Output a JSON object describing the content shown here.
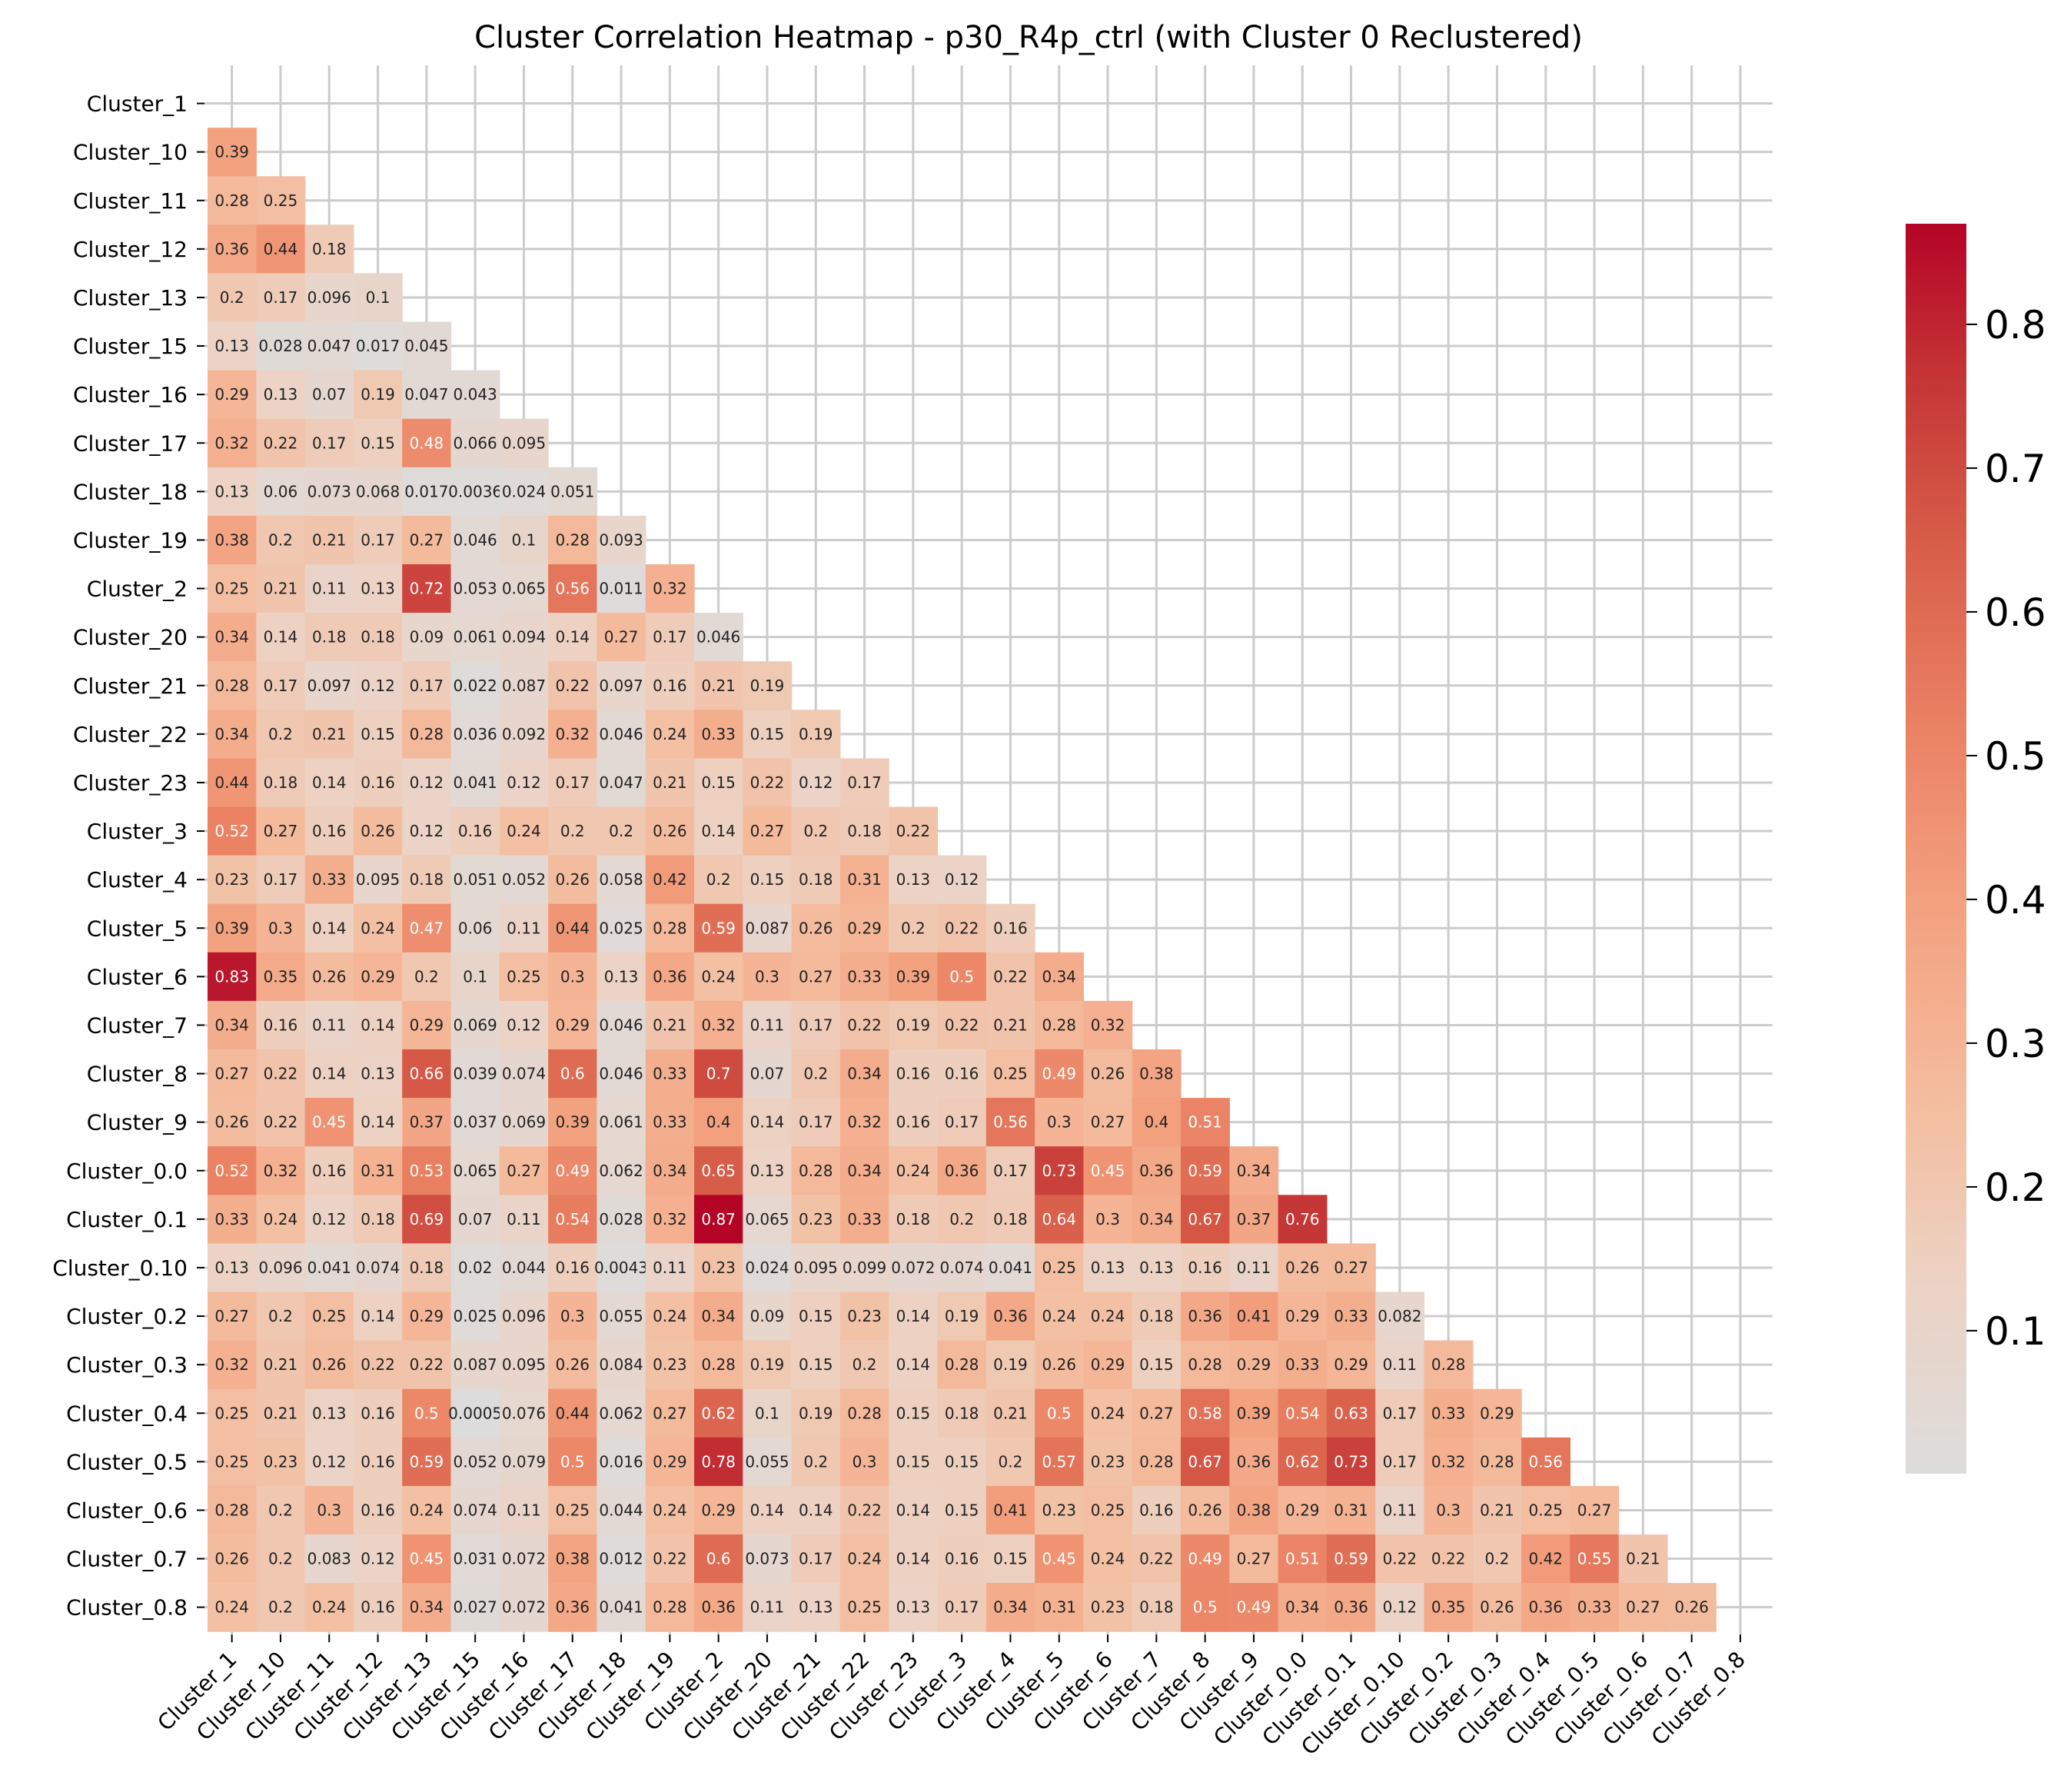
{
  "chart_data": {
    "type": "heatmap",
    "title": "Cluster Correlation Heatmap - p30_R4p_ctrl (with Cluster 0 Reclustered)",
    "xlabel": "",
    "ylabel": "",
    "mask": "upper-triangle",
    "grid": true,
    "colormap": "coolwarm (centered, light gray at minimum)",
    "color_low": "#dcdcdc",
    "color_high": "#b40426",
    "vmin": 0.0005,
    "vmax": 0.87,
    "labels": [
      "Cluster_1",
      "Cluster_10",
      "Cluster_11",
      "Cluster_12",
      "Cluster_13",
      "Cluster_15",
      "Cluster_16",
      "Cluster_17",
      "Cluster_18",
      "Cluster_19",
      "Cluster_2",
      "Cluster_20",
      "Cluster_21",
      "Cluster_22",
      "Cluster_23",
      "Cluster_3",
      "Cluster_4",
      "Cluster_5",
      "Cluster_6",
      "Cluster_7",
      "Cluster_8",
      "Cluster_9",
      "Cluster_0.0",
      "Cluster_0.1",
      "Cluster_0.10",
      "Cluster_0.2",
      "Cluster_0.3",
      "Cluster_0.4",
      "Cluster_0.5",
      "Cluster_0.6",
      "Cluster_0.7",
      "Cluster_0.8"
    ],
    "rows": [
      [],
      [
        "0.39"
      ],
      [
        "0.28",
        "0.25"
      ],
      [
        "0.36",
        "0.44",
        "0.18"
      ],
      [
        "0.2",
        "0.17",
        "0.096",
        "0.1"
      ],
      [
        "0.13",
        "0.028",
        "0.047",
        "0.017",
        "0.045"
      ],
      [
        "0.29",
        "0.13",
        "0.07",
        "0.19",
        "0.047",
        "0.043"
      ],
      [
        "0.32",
        "0.22",
        "0.17",
        "0.15",
        "0.48",
        "0.066",
        "0.095"
      ],
      [
        "0.13",
        "0.06",
        "0.073",
        "0.068",
        "0.017",
        "0.0036",
        "0.024",
        "0.051"
      ],
      [
        "0.38",
        "0.2",
        "0.21",
        "0.17",
        "0.27",
        "0.046",
        "0.1",
        "0.28",
        "0.093"
      ],
      [
        "0.25",
        "0.21",
        "0.11",
        "0.13",
        "0.72",
        "0.053",
        "0.065",
        "0.56",
        "0.011",
        "0.32"
      ],
      [
        "0.34",
        "0.14",
        "0.18",
        "0.18",
        "0.09",
        "0.061",
        "0.094",
        "0.14",
        "0.27",
        "0.17",
        "0.046"
      ],
      [
        "0.28",
        "0.17",
        "0.097",
        "0.12",
        "0.17",
        "0.022",
        "0.087",
        "0.22",
        "0.097",
        "0.16",
        "0.21",
        "0.19"
      ],
      [
        "0.34",
        "0.2",
        "0.21",
        "0.15",
        "0.28",
        "0.036",
        "0.092",
        "0.32",
        "0.046",
        "0.24",
        "0.33",
        "0.15",
        "0.19"
      ],
      [
        "0.44",
        "0.18",
        "0.14",
        "0.16",
        "0.12",
        "0.041",
        "0.12",
        "0.17",
        "0.047",
        "0.21",
        "0.15",
        "0.22",
        "0.12",
        "0.17"
      ],
      [
        "0.52",
        "0.27",
        "0.16",
        "0.26",
        "0.12",
        "0.16",
        "0.24",
        "0.2",
        "0.2",
        "0.26",
        "0.14",
        "0.27",
        "0.2",
        "0.18",
        "0.22"
      ],
      [
        "0.23",
        "0.17",
        "0.33",
        "0.095",
        "0.18",
        "0.051",
        "0.052",
        "0.26",
        "0.058",
        "0.42",
        "0.2",
        "0.15",
        "0.18",
        "0.31",
        "0.13",
        "0.12"
      ],
      [
        "0.39",
        "0.3",
        "0.14",
        "0.24",
        "0.47",
        "0.06",
        "0.11",
        "0.44",
        "0.025",
        "0.28",
        "0.59",
        "0.087",
        "0.26",
        "0.29",
        "0.2",
        "0.22",
        "0.16"
      ],
      [
        "0.83",
        "0.35",
        "0.26",
        "0.29",
        "0.2",
        "0.1",
        "0.25",
        "0.3",
        "0.13",
        "0.36",
        "0.24",
        "0.3",
        "0.27",
        "0.33",
        "0.39",
        "0.5",
        "0.22",
        "0.34"
      ],
      [
        "0.34",
        "0.16",
        "0.11",
        "0.14",
        "0.29",
        "0.069",
        "0.12",
        "0.29",
        "0.046",
        "0.21",
        "0.32",
        "0.11",
        "0.17",
        "0.22",
        "0.19",
        "0.22",
        "0.21",
        "0.28",
        "0.32"
      ],
      [
        "0.27",
        "0.22",
        "0.14",
        "0.13",
        "0.66",
        "0.039",
        "0.074",
        "0.6",
        "0.046",
        "0.33",
        "0.7",
        "0.07",
        "0.2",
        "0.34",
        "0.16",
        "0.16",
        "0.25",
        "0.49",
        "0.26",
        "0.38"
      ],
      [
        "0.26",
        "0.22",
        "0.45",
        "0.14",
        "0.37",
        "0.037",
        "0.069",
        "0.39",
        "0.061",
        "0.33",
        "0.4",
        "0.14",
        "0.17",
        "0.32",
        "0.16",
        "0.17",
        "0.56",
        "0.3",
        "0.27",
        "0.4",
        "0.51"
      ],
      [
        "0.52",
        "0.32",
        "0.16",
        "0.31",
        "0.53",
        "0.065",
        "0.27",
        "0.49",
        "0.062",
        "0.34",
        "0.65",
        "0.13",
        "0.28",
        "0.34",
        "0.24",
        "0.36",
        "0.17",
        "0.73",
        "0.45",
        "0.36",
        "0.59",
        "0.34"
      ],
      [
        "0.33",
        "0.24",
        "0.12",
        "0.18",
        "0.69",
        "0.07",
        "0.11",
        "0.54",
        "0.028",
        "0.32",
        "0.87",
        "0.065",
        "0.23",
        "0.33",
        "0.18",
        "0.2",
        "0.18",
        "0.64",
        "0.3",
        "0.34",
        "0.67",
        "0.37",
        "0.76"
      ],
      [
        "0.13",
        "0.096",
        "0.041",
        "0.074",
        "0.18",
        "0.02",
        "0.044",
        "0.16",
        "0.0043",
        "0.11",
        "0.23",
        "0.024",
        "0.095",
        "0.099",
        "0.072",
        "0.074",
        "0.041",
        "0.25",
        "0.13",
        "0.13",
        "0.16",
        "0.11",
        "0.26",
        "0.27"
      ],
      [
        "0.27",
        "0.2",
        "0.25",
        "0.14",
        "0.29",
        "0.025",
        "0.096",
        "0.3",
        "0.055",
        "0.24",
        "0.34",
        "0.09",
        "0.15",
        "0.23",
        "0.14",
        "0.19",
        "0.36",
        "0.24",
        "0.24",
        "0.18",
        "0.36",
        "0.41",
        "0.29",
        "0.33",
        "0.082"
      ],
      [
        "0.32",
        "0.21",
        "0.26",
        "0.22",
        "0.22",
        "0.087",
        "0.095",
        "0.26",
        "0.084",
        "0.23",
        "0.28",
        "0.19",
        "0.15",
        "0.2",
        "0.14",
        "0.28",
        "0.19",
        "0.26",
        "0.29",
        "0.15",
        "0.28",
        "0.29",
        "0.33",
        "0.29",
        "0.11",
        "0.28"
      ],
      [
        "0.25",
        "0.21",
        "0.13",
        "0.16",
        "0.5",
        "0.0005",
        "0.076",
        "0.44",
        "0.062",
        "0.27",
        "0.62",
        "0.1",
        "0.19",
        "0.28",
        "0.15",
        "0.18",
        "0.21",
        "0.5",
        "0.24",
        "0.27",
        "0.58",
        "0.39",
        "0.54",
        "0.63",
        "0.17",
        "0.33",
        "0.29"
      ],
      [
        "0.25",
        "0.23",
        "0.12",
        "0.16",
        "0.59",
        "0.052",
        "0.079",
        "0.5",
        "0.016",
        "0.29",
        "0.78",
        "0.055",
        "0.2",
        "0.3",
        "0.15",
        "0.15",
        "0.2",
        "0.57",
        "0.23",
        "0.28",
        "0.67",
        "0.36",
        "0.62",
        "0.73",
        "0.17",
        "0.32",
        "0.28",
        "0.56"
      ],
      [
        "0.28",
        "0.2",
        "0.3",
        "0.16",
        "0.24",
        "0.074",
        "0.11",
        "0.25",
        "0.044",
        "0.24",
        "0.29",
        "0.14",
        "0.14",
        "0.22",
        "0.14",
        "0.15",
        "0.41",
        "0.23",
        "0.25",
        "0.16",
        "0.26",
        "0.38",
        "0.29",
        "0.31",
        "0.11",
        "0.3",
        "0.21",
        "0.25",
        "0.27"
      ],
      [
        "0.26",
        "0.2",
        "0.083",
        "0.12",
        "0.45",
        "0.031",
        "0.072",
        "0.38",
        "0.012",
        "0.22",
        "0.6",
        "0.073",
        "0.17",
        "0.24",
        "0.14",
        "0.16",
        "0.15",
        "0.45",
        "0.24",
        "0.22",
        "0.49",
        "0.27",
        "0.51",
        "0.59",
        "0.22",
        "0.22",
        "0.2",
        "0.42",
        "0.55",
        "0.21"
      ],
      [
        "0.24",
        "0.2",
        "0.24",
        "0.16",
        "0.34",
        "0.027",
        "0.072",
        "0.36",
        "0.041",
        "0.28",
        "0.36",
        "0.11",
        "0.13",
        "0.25",
        "0.13",
        "0.17",
        "0.34",
        "0.31",
        "0.23",
        "0.18",
        "0.5",
        "0.49",
        "0.34",
        "0.36",
        "0.12",
        "0.35",
        "0.26",
        "0.36",
        "0.33",
        "0.27",
        "0.26"
      ]
    ],
    "colorbar": {
      "ticks": [
        "0.1",
        "0.2",
        "0.3",
        "0.4",
        "0.5",
        "0.6",
        "0.7",
        "0.8"
      ]
    }
  }
}
